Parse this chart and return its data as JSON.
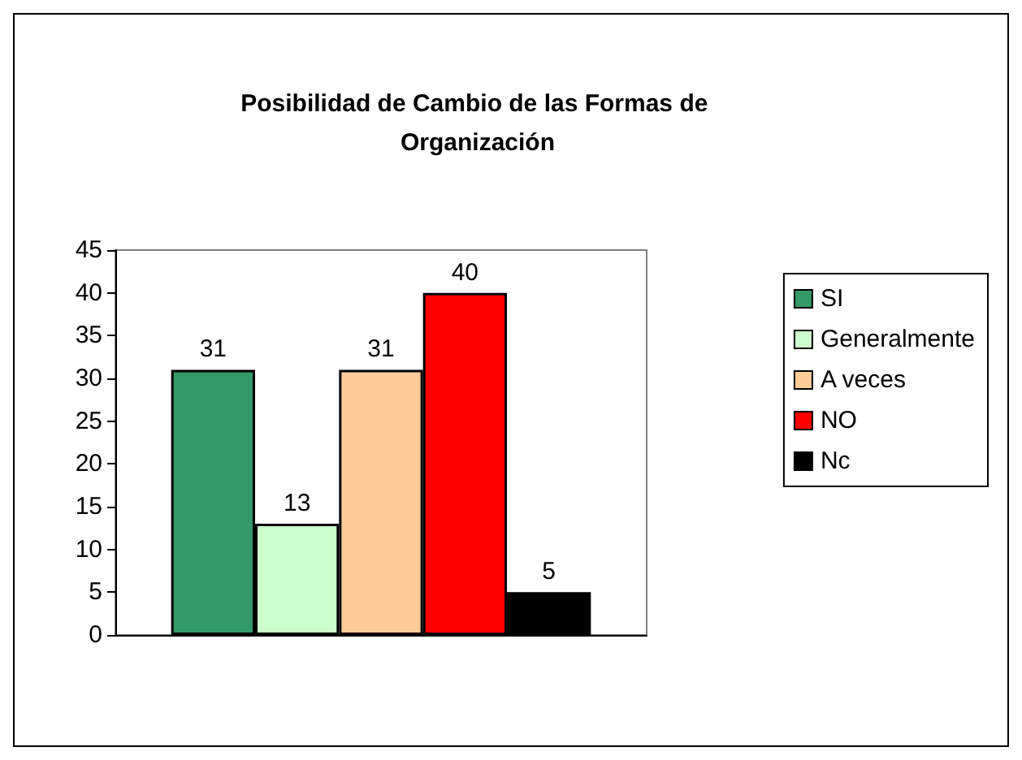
{
  "chart_data": {
    "type": "bar",
    "title": "Posibilidad de Cambio de las Formas de Organización",
    "categories": [
      null
    ],
    "series": [
      {
        "name": "SI",
        "color": "#339966",
        "values": [
          31
        ]
      },
      {
        "name": "Generalmente",
        "color": "#ccffcc",
        "values": [
          13
        ]
      },
      {
        "name": "A veces",
        "color": "#ffcc99",
        "values": [
          31
        ]
      },
      {
        "name": "NO",
        "color": "#ff0000",
        "values": [
          40
        ]
      },
      {
        "name": "Nc",
        "color": "#000000",
        "values": [
          5
        ]
      }
    ],
    "ylim": [
      0,
      45
    ],
    "yticks": [
      0,
      5,
      10,
      15,
      20,
      25,
      30,
      35,
      40,
      45
    ],
    "grid": false,
    "legend": "right",
    "data_labels": true
  }
}
